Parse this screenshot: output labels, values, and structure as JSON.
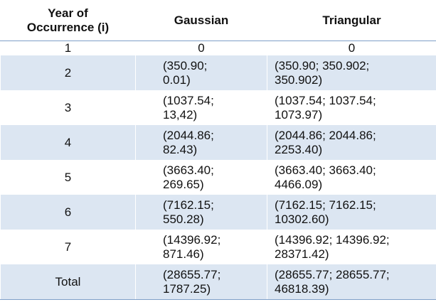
{
  "table": {
    "header": [
      [
        "Year of",
        "Occurrence (i)"
      ],
      [
        "Gaussian"
      ],
      [
        "Triangular"
      ]
    ],
    "rows": [
      [
        [
          "1"
        ],
        [
          "0"
        ],
        [
          "0"
        ]
      ],
      [
        [
          "2"
        ],
        [
          "(350.90;",
          "0.01)"
        ],
        [
          "(350.90; 350.902;",
          "350.902)"
        ]
      ],
      [
        [
          "3"
        ],
        [
          "(1037.54;",
          "13,42)"
        ],
        [
          "(1037.54; 1037.54;",
          "1073.97)"
        ]
      ],
      [
        [
          "4"
        ],
        [
          "(2044.86;",
          "82.43)"
        ],
        [
          "(2044.86; 2044.86;",
          "2253.40)"
        ]
      ],
      [
        [
          "5"
        ],
        [
          "(3663.40;",
          "269.65)"
        ],
        [
          "(3663.40; 3663.40;",
          "4466.09)"
        ]
      ],
      [
        [
          "6"
        ],
        [
          "(7162.15;",
          "550.28)"
        ],
        [
          "(7162.15; 7162.15;",
          "10302.60)"
        ]
      ],
      [
        [
          "7"
        ],
        [
          "(14396.92;",
          "871.46)"
        ],
        [
          "(14396.92; 14396.92;",
          "28371.42)"
        ]
      ],
      [
        [
          "Total"
        ],
        [
          "(28655.77;",
          "1787.25)"
        ],
        [
          "(28655.77; 28655.77;",
          "46818.39)"
        ]
      ]
    ]
  }
}
